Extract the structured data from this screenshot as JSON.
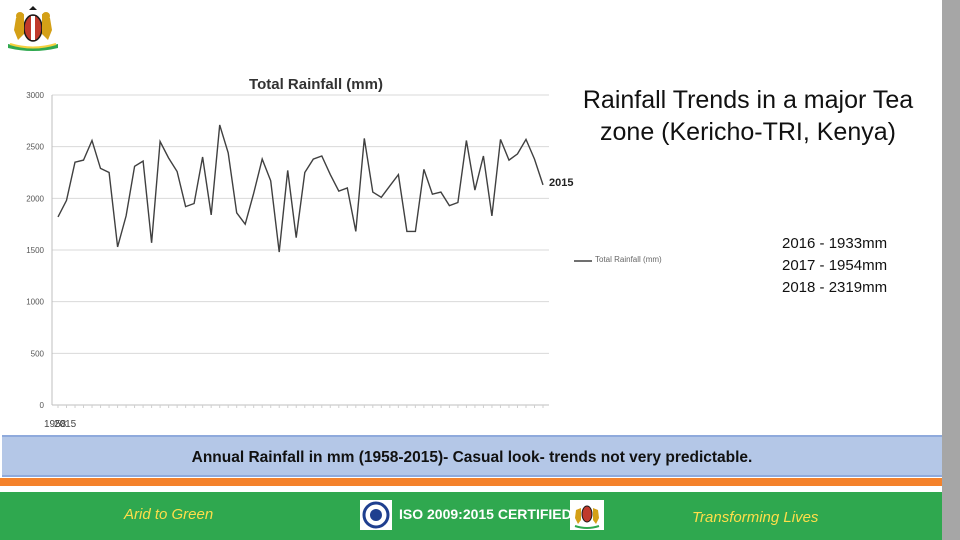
{
  "slide": {
    "heading": "Rainfall Trends in a major Tea zone (Kericho-TRI, Kenya)",
    "recent_values": [
      "2016 - 1933mm",
      "2017 - 1954mm",
      "2018 - 2319mm"
    ],
    "caption": "Annual Rainfall in mm (1958-2015)-  Casual look- trends not very predictable.",
    "footer": {
      "left": "Arid to Green",
      "middle": "ISO 2009:2015 CERTIFIED",
      "right": "Transforming Lives"
    },
    "logo": "kenya-coat-of-arms-icon",
    "colors": {
      "footer_green": "#2fa84f",
      "stripe_orange": "#f4822b",
      "caption_blue": "#b4c7e7",
      "footer_text_yellow": "#ffde4a"
    }
  },
  "chart_data": {
    "type": "line",
    "title": "Total Rainfall (mm)",
    "xlabel": "",
    "ylabel": "",
    "ylim": [
      0,
      3000
    ],
    "yticks": [
      0,
      500,
      1000,
      1500,
      2000,
      2500,
      3000
    ],
    "x_start_label": "1958",
    "x_end_label": "2015",
    "line_end_label": "2015",
    "legend": "top-right-outside",
    "grid": true,
    "series": [
      {
        "name": "Total Rainfall (mm)",
        "color": "#404040",
        "x": [
          1958,
          1959,
          1960,
          1961,
          1962,
          1963,
          1964,
          1965,
          1966,
          1967,
          1968,
          1969,
          1970,
          1971,
          1972,
          1973,
          1974,
          1975,
          1976,
          1977,
          1978,
          1979,
          1980,
          1981,
          1982,
          1983,
          1984,
          1985,
          1986,
          1987,
          1988,
          1989,
          1990,
          1991,
          1992,
          1993,
          1994,
          1995,
          1996,
          1997,
          1998,
          1999,
          2000,
          2001,
          2002,
          2003,
          2004,
          2005,
          2006,
          2007,
          2008,
          2009,
          2010,
          2011,
          2012,
          2013,
          2014,
          2015
        ],
        "values": [
          1820,
          1980,
          2350,
          2370,
          2560,
          2290,
          2250,
          1530,
          1830,
          2310,
          2360,
          1570,
          2550,
          2390,
          2260,
          1920,
          1950,
          2400,
          1840,
          2710,
          2440,
          1860,
          1750,
          2050,
          2380,
          2170,
          1480,
          2270,
          1620,
          2250,
          2380,
          2410,
          2230,
          2070,
          2100,
          1680,
          2580,
          2060,
          2010,
          2120,
          2230,
          1680,
          1680,
          2280,
          2040,
          2060,
          1930,
          1960,
          2560,
          2080,
          2410,
          1830,
          2570,
          2370,
          2430,
          2570,
          2380,
          2130
        ]
      }
    ]
  }
}
